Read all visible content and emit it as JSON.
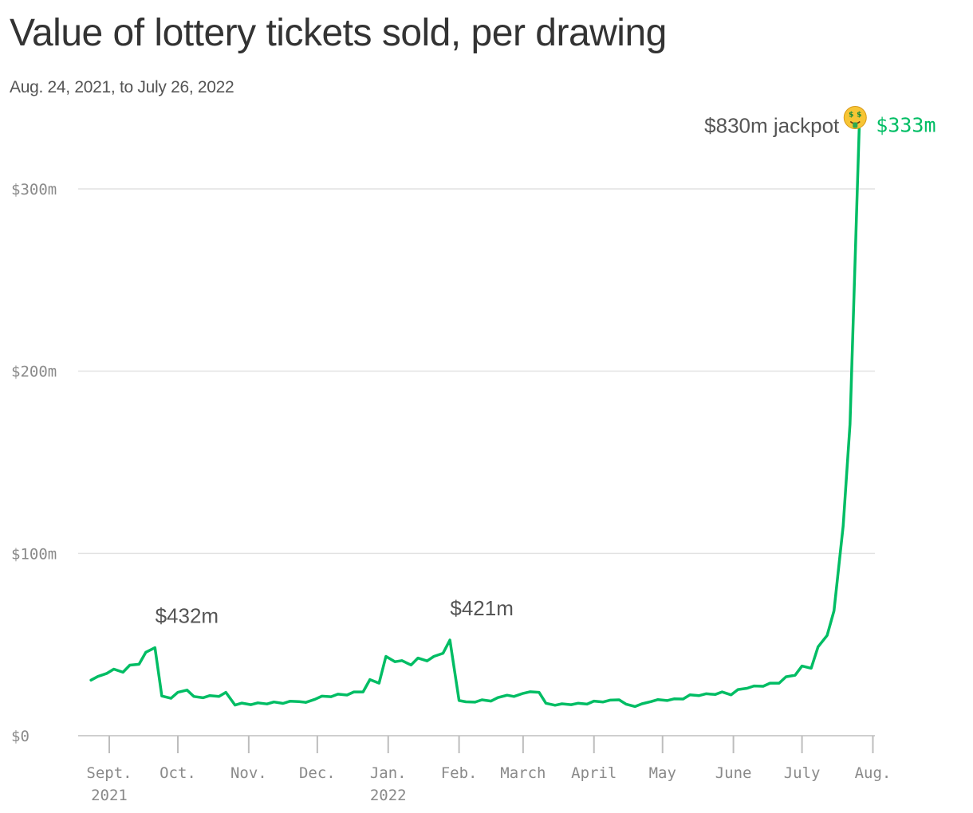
{
  "title": "Value of lottery tickets sold, per drawing",
  "subtitle": "Aug. 24, 2021, to July 26, 2022",
  "colors": {
    "line": "#00bd64",
    "text": "#333333",
    "annotation": "#555555",
    "axis_label": "#8a8a8a",
    "grid": "#e2e2e2"
  },
  "chart_data": {
    "type": "line",
    "title": "Value of lottery tickets sold, per drawing",
    "subtitle": "Aug. 24, 2021, to July 26, 2022",
    "xlabel": "",
    "ylabel": "",
    "y_unit": "millions of dollars",
    "ylim": [
      0,
      300
    ],
    "y_ticks": [
      0,
      100,
      200,
      300
    ],
    "y_tick_labels": [
      "$0",
      "$100m",
      "$200m",
      "$300m"
    ],
    "x_ticks": [
      {
        "date": "2021-09-01",
        "label": "Sept.",
        "sublabel": "2021"
      },
      {
        "date": "2021-10-01",
        "label": "Oct.",
        "sublabel": ""
      },
      {
        "date": "2021-11-01",
        "label": "Nov.",
        "sublabel": ""
      },
      {
        "date": "2021-12-01",
        "label": "Dec.",
        "sublabel": ""
      },
      {
        "date": "2022-01-01",
        "label": "Jan.",
        "sublabel": "2022"
      },
      {
        "date": "2022-02-01",
        "label": "Feb.",
        "sublabel": ""
      },
      {
        "date": "2022-03-01",
        "label": "March",
        "sublabel": ""
      },
      {
        "date": "2022-04-01",
        "label": "April",
        "sublabel": ""
      },
      {
        "date": "2022-05-01",
        "label": "May",
        "sublabel": ""
      },
      {
        "date": "2022-06-01",
        "label": "June",
        "sublabel": ""
      },
      {
        "date": "2022-07-01",
        "label": "July",
        "sublabel": ""
      },
      {
        "date": "2022-08-01",
        "label": "Aug.",
        "sublabel": ""
      }
    ],
    "grid": true,
    "legend": "none",
    "series": [
      {
        "color": "#00bd64",
        "points": [
          [
            "2021-08-24",
            30.5
          ],
          [
            "2021-08-27",
            32.5
          ],
          [
            "2021-08-31",
            34.2
          ],
          [
            "2021-09-03",
            36.5
          ],
          [
            "2021-09-07",
            34.8
          ],
          [
            "2021-09-10",
            38.7
          ],
          [
            "2021-09-14",
            39.2
          ],
          [
            "2021-09-17",
            45.8
          ],
          [
            "2021-09-21",
            48.3
          ],
          [
            "2021-09-24",
            21.8
          ],
          [
            "2021-09-28",
            20.5
          ],
          [
            "2021-10-01",
            23.8
          ],
          [
            "2021-10-05",
            25.0
          ],
          [
            "2021-10-08",
            21.5
          ],
          [
            "2021-10-12",
            20.8
          ],
          [
            "2021-10-15",
            22.0
          ],
          [
            "2021-10-19",
            21.5
          ],
          [
            "2021-10-22",
            23.8
          ],
          [
            "2021-10-26",
            16.8
          ],
          [
            "2021-10-29",
            17.9
          ],
          [
            "2021-11-02",
            17.0
          ],
          [
            "2021-11-05",
            18.0
          ],
          [
            "2021-11-09",
            17.4
          ],
          [
            "2021-11-12",
            18.5
          ],
          [
            "2021-11-16",
            17.7
          ],
          [
            "2021-11-19",
            18.9
          ],
          [
            "2021-11-23",
            18.7
          ],
          [
            "2021-11-26",
            18.3
          ],
          [
            "2021-11-30",
            20.0
          ],
          [
            "2021-12-03",
            21.7
          ],
          [
            "2021-12-07",
            21.4
          ],
          [
            "2021-12-10",
            22.8
          ],
          [
            "2021-12-14",
            22.3
          ],
          [
            "2021-12-17",
            24.0
          ],
          [
            "2021-12-21",
            24.0
          ],
          [
            "2021-12-24",
            30.8
          ],
          [
            "2021-12-28",
            28.8
          ],
          [
            "2021-12-31",
            43.5
          ],
          [
            "2022-01-04",
            40.6
          ],
          [
            "2022-01-07",
            41.2
          ],
          [
            "2022-01-11",
            38.8
          ],
          [
            "2022-01-14",
            42.6
          ],
          [
            "2022-01-18",
            41.0
          ],
          [
            "2022-01-21",
            43.5
          ],
          [
            "2022-01-25",
            45.2
          ],
          [
            "2022-01-28",
            52.5
          ],
          [
            "2022-02-01",
            19.3
          ],
          [
            "2022-02-04",
            18.6
          ],
          [
            "2022-02-08",
            18.4
          ],
          [
            "2022-02-11",
            19.7
          ],
          [
            "2022-02-15",
            19.0
          ],
          [
            "2022-02-18",
            20.9
          ],
          [
            "2022-02-22",
            22.2
          ],
          [
            "2022-02-25",
            21.5
          ],
          [
            "2022-03-01",
            23.2
          ],
          [
            "2022-03-04",
            24.1
          ],
          [
            "2022-03-08",
            23.8
          ],
          [
            "2022-03-11",
            17.8
          ],
          [
            "2022-03-15",
            16.7
          ],
          [
            "2022-03-18",
            17.5
          ],
          [
            "2022-03-22",
            17.0
          ],
          [
            "2022-03-25",
            17.8
          ],
          [
            "2022-03-29",
            17.3
          ],
          [
            "2022-04-01",
            19.0
          ],
          [
            "2022-04-05",
            18.5
          ],
          [
            "2022-04-08",
            19.5
          ],
          [
            "2022-04-12",
            19.7
          ],
          [
            "2022-04-15",
            17.3
          ],
          [
            "2022-04-19",
            16.0
          ],
          [
            "2022-04-22",
            17.5
          ],
          [
            "2022-04-26",
            18.7
          ],
          [
            "2022-04-29",
            19.8
          ],
          [
            "2022-05-03",
            19.3
          ],
          [
            "2022-05-06",
            20.2
          ],
          [
            "2022-05-10",
            20.1
          ],
          [
            "2022-05-13",
            22.4
          ],
          [
            "2022-05-17",
            22.0
          ],
          [
            "2022-05-20",
            23.0
          ],
          [
            "2022-05-24",
            22.6
          ],
          [
            "2022-05-27",
            24.0
          ],
          [
            "2022-05-31",
            22.4
          ],
          [
            "2022-06-03",
            25.3
          ],
          [
            "2022-06-07",
            26.0
          ],
          [
            "2022-06-10",
            27.3
          ],
          [
            "2022-06-14",
            27.1
          ],
          [
            "2022-06-17",
            28.8
          ],
          [
            "2022-06-21",
            28.8
          ],
          [
            "2022-06-24",
            32.3
          ],
          [
            "2022-06-28",
            33.2
          ],
          [
            "2022-07-01",
            38.2
          ],
          [
            "2022-07-05",
            37.0
          ],
          [
            "2022-07-08",
            48.7
          ],
          [
            "2022-07-12",
            55.0
          ],
          [
            "2022-07-15",
            68.5
          ],
          [
            "2022-07-19",
            115.0
          ],
          [
            "2022-07-22",
            171.0
          ],
          [
            "2022-07-26",
            333.0
          ]
        ]
      }
    ],
    "annotations": [
      {
        "label": "$432m",
        "date": "2021-09-21",
        "value": 48.3
      },
      {
        "label": "$421m",
        "date": "2022-01-28",
        "value": 52.5
      },
      {
        "label": "$830m jackpot",
        "icon": "money-mouth-face-icon",
        "date": "2022-07-26",
        "value": 333.0
      }
    ],
    "end_label": {
      "text": "$333m",
      "date": "2022-07-26",
      "value": 333.0
    }
  }
}
